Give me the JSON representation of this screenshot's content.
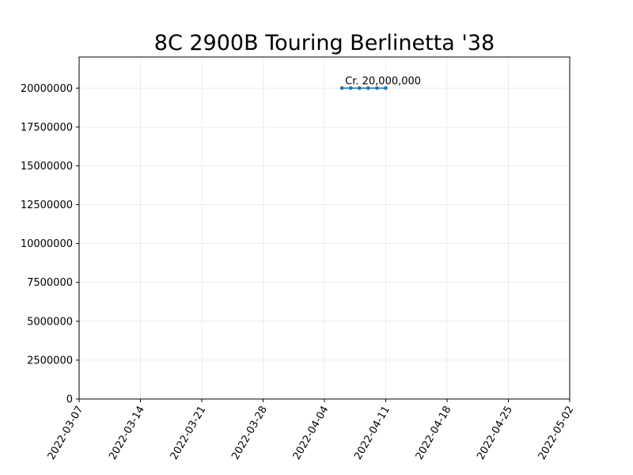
{
  "chart_data": {
    "type": "line",
    "title": "8C 2900B Touring Berlinetta '38",
    "xlabel": "",
    "ylabel": "",
    "x_axis": {
      "type": "date",
      "range": [
        "2022-03-07",
        "2022-05-02"
      ],
      "ticks": [
        "2022-03-07",
        "2022-03-14",
        "2022-03-21",
        "2022-03-28",
        "2022-04-04",
        "2022-04-11",
        "2022-04-18",
        "2022-04-25",
        "2022-05-02"
      ]
    },
    "y_axis": {
      "range": [
        0,
        22000000
      ],
      "ticks": [
        0,
        2500000,
        5000000,
        7500000,
        10000000,
        12500000,
        15000000,
        17500000,
        20000000
      ],
      "tick_labels": [
        "0",
        "2500000",
        "5000000",
        "7500000",
        "10000000",
        "12500000",
        "15000000",
        "17500000",
        "20000000"
      ]
    },
    "grid": true,
    "series": [
      {
        "color": "#1f77b4",
        "marker": "circle",
        "points": [
          {
            "x": "2022-04-06",
            "y": 20000000
          },
          {
            "x": "2022-04-07",
            "y": 20000000
          },
          {
            "x": "2022-04-08",
            "y": 20000000
          },
          {
            "x": "2022-04-09",
            "y": 20000000
          },
          {
            "x": "2022-04-10",
            "y": 20000000
          },
          {
            "x": "2022-04-11",
            "y": 20000000
          }
        ]
      }
    ],
    "annotations": [
      {
        "text": "Cr. 20,000,000",
        "x": "2022-04-06",
        "y": 20000000
      }
    ]
  }
}
